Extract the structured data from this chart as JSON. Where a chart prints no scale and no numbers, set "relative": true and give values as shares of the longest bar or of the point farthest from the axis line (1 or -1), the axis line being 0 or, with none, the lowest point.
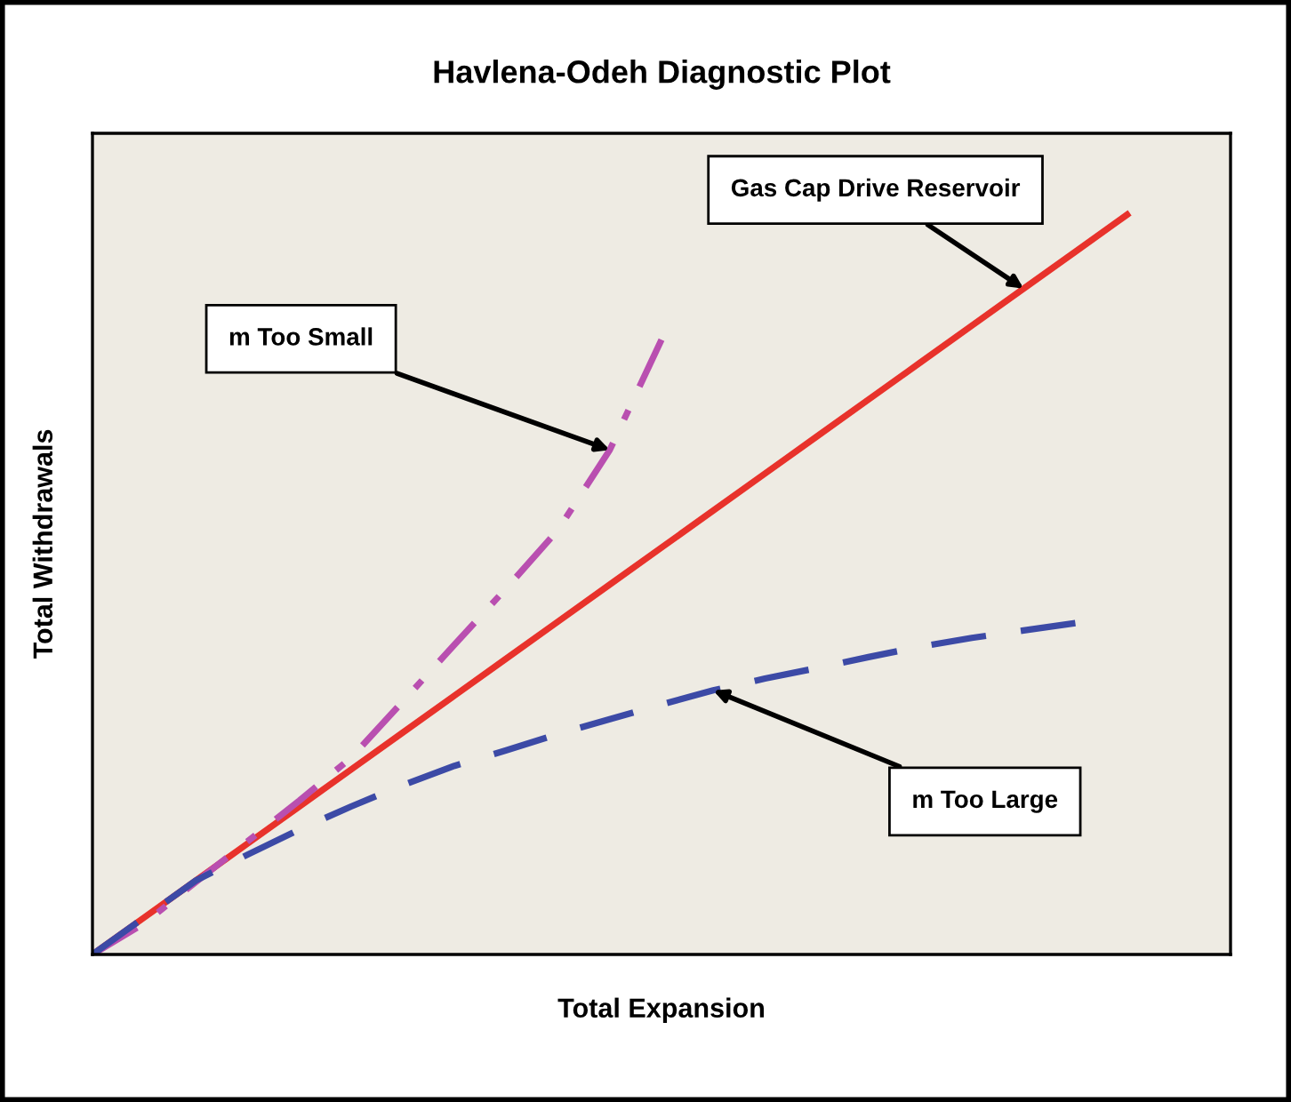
{
  "chart_data": {
    "type": "line",
    "title": "Havlena-Odeh Diagnostic Plot",
    "xlabel": "Total Expansion",
    "ylabel": "Total Withdrawals",
    "relative": true,
    "categories": [
      null,
      null,
      null,
      null,
      null,
      null,
      null,
      null,
      null,
      null,
      null,
      null,
      null,
      null,
      null,
      null,
      null,
      null,
      null,
      null,
      null
    ],
    "series": [
      {
        "color": "#e8322b",
        "line_style": "solid",
        "values": [
          0,
          0.05,
          0.1,
          0.15,
          0.2,
          0.25,
          0.3,
          0.35,
          0.4,
          0.45,
          0.5,
          0.55,
          0.6,
          0.65,
          0.7,
          0.75,
          0.8,
          0.85,
          0.9,
          0.95,
          1
        ]
      },
      {
        "color": "#b94fb0",
        "line_style": "dashdot",
        "values": [
          0,
          0.042,
          0.098,
          0.153,
          0.208,
          0.266,
          0.342,
          0.419,
          0.495,
          0.574,
          0.682,
          0.831,
          null,
          null,
          null,
          null,
          null,
          null,
          null,
          null,
          null
        ]
      },
      {
        "color": "#3c4aa6",
        "line_style": "dashed",
        "values": [
          0,
          0.05,
          0.1,
          0.135,
          0.169,
          0.2,
          0.229,
          0.255,
          0.276,
          0.298,
          0.318,
          0.338,
          0.357,
          0.373,
          0.387,
          0.402,
          0.416,
          0.428,
          0.438,
          0.448,
          null
        ]
      }
    ],
    "annotations": [
      "Gas Cap Drive Reservoir",
      "m Too Small",
      "m Too Large"
    ]
  }
}
